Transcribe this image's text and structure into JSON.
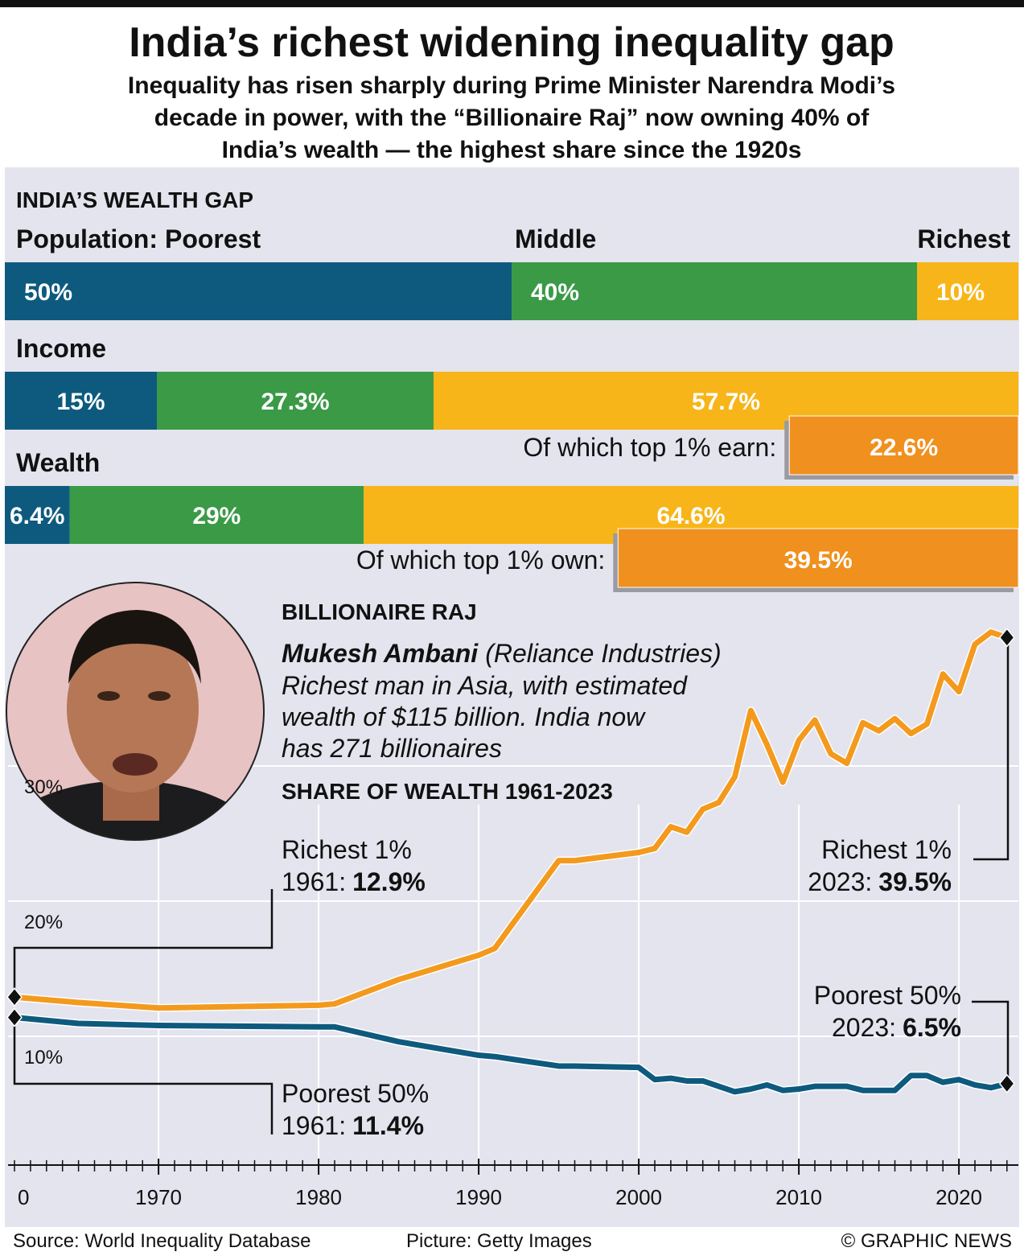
{
  "header": {
    "title": "India’s richest widening inequality gap",
    "subtitle": [
      "Inequality has risen sharply during Prime Minister Narendra Modi’s",
      "decade in power, with the “Billionaire Raj” now owning 40% of",
      "India’s wealth — the highest share since the 1920s"
    ]
  },
  "chart_data": [
    {
      "type": "stacked_bar",
      "title": "INDIA’S WEALTH GAP",
      "categories": [
        "Population:",
        "Income",
        "Wealth"
      ],
      "series": [
        {
          "name": "Poorest",
          "color": "#0e5a7e",
          "values": [
            50,
            15,
            6.4
          ],
          "value_labels": [
            "50%",
            "15%",
            "6.4%"
          ]
        },
        {
          "name": "Middle",
          "color": "#3a9a46",
          "values": [
            40,
            27.3,
            29
          ],
          "value_labels": [
            "40%",
            "27.3%",
            "29%"
          ]
        },
        {
          "name": "Richest",
          "color": "#f7b519",
          "values": [
            10,
            57.7,
            64.6
          ],
          "value_labels": [
            "10%",
            "57.7%",
            "64.6%"
          ]
        }
      ],
      "top_share": {
        "labels": [
          "Of which top 1% earn:",
          "Of which top 1% own:"
        ],
        "values": [
          22.6,
          39.5
        ],
        "value_labels": [
          "22.6%",
          "39.5%"
        ],
        "color": "#f0901e"
      }
    },
    {
      "type": "line",
      "title": "SHARE OF WEALTH 1961-2023",
      "x": [
        1961,
        1965,
        1970,
        1975,
        1980,
        1981,
        1985,
        1990,
        1991,
        1995,
        1996,
        2000,
        2001,
        2002,
        2003,
        2004,
        2005,
        2006,
        2007,
        2008,
        2009,
        2010,
        2011,
        2012,
        2013,
        2014,
        2015,
        2016,
        2017,
        2018,
        2019,
        2020,
        2021,
        2022,
        2023
      ],
      "series": [
        {
          "name": "Richest 1%",
          "color": "#f39a1e",
          "values": [
            12.9,
            12.5,
            12.1,
            12.2,
            12.3,
            12.4,
            14.2,
            16.0,
            16.5,
            23.0,
            23.0,
            23.6,
            23.9,
            25.5,
            25.1,
            26.8,
            27.3,
            29.2,
            34.1,
            31.6,
            28.8,
            31.9,
            33.4,
            30.9,
            30.2,
            33.2,
            32.6,
            33.5,
            32.4,
            33.1,
            36.8,
            35.5,
            39.0,
            39.9,
            39.5
          ],
          "annotations": [
            {
              "text": "1961:",
              "value_label": "12.9%"
            },
            {
              "text": "2023:",
              "value_label": "39.5%"
            }
          ]
        },
        {
          "name": "Poorest 50%",
          "color": "#0e5a7e",
          "values": [
            11.4,
            10.95,
            10.8,
            10.75,
            10.7,
            10.7,
            9.6,
            8.6,
            8.5,
            7.8,
            7.8,
            7.7,
            6.8,
            6.9,
            6.7,
            6.7,
            6.3,
            5.9,
            6.1,
            6.4,
            6.0,
            6.1,
            6.3,
            6.3,
            6.3,
            6.0,
            6.0,
            6.0,
            7.1,
            7.1,
            6.6,
            6.8,
            6.4,
            6.2,
            6.5
          ],
          "annotations": [
            {
              "text": "1961:",
              "value_label": "11.4%"
            },
            {
              "text": "2023:",
              "value_label": "6.5%"
            }
          ]
        }
      ],
      "xlim": [
        1960,
        2023
      ],
      "xticks": [
        {
          "value": 1960,
          "label": "0"
        },
        1970,
        1980,
        1990,
        2000,
        2010,
        2020
      ],
      "ylim": [
        0,
        40
      ],
      "yticks": [
        {
          "value": 10,
          "label": "10%"
        },
        {
          "value": 20,
          "label": "20%"
        },
        {
          "value": 30,
          "label": "30%"
        }
      ],
      "grid": true
    }
  ],
  "profile": {
    "heading": "BILLIONAIRE RAJ",
    "name": "Mukesh Ambani",
    "company": "(Reliance Industries)",
    "lines": [
      "Richest man in Asia, with estimated",
      "wealth of $115 billion. India now",
      "has 271 billionaires"
    ]
  },
  "footer": {
    "source": "Source: World Inequality Database",
    "picture": "Picture: Getty Images",
    "credit": "© GRAPHIC NEWS"
  }
}
